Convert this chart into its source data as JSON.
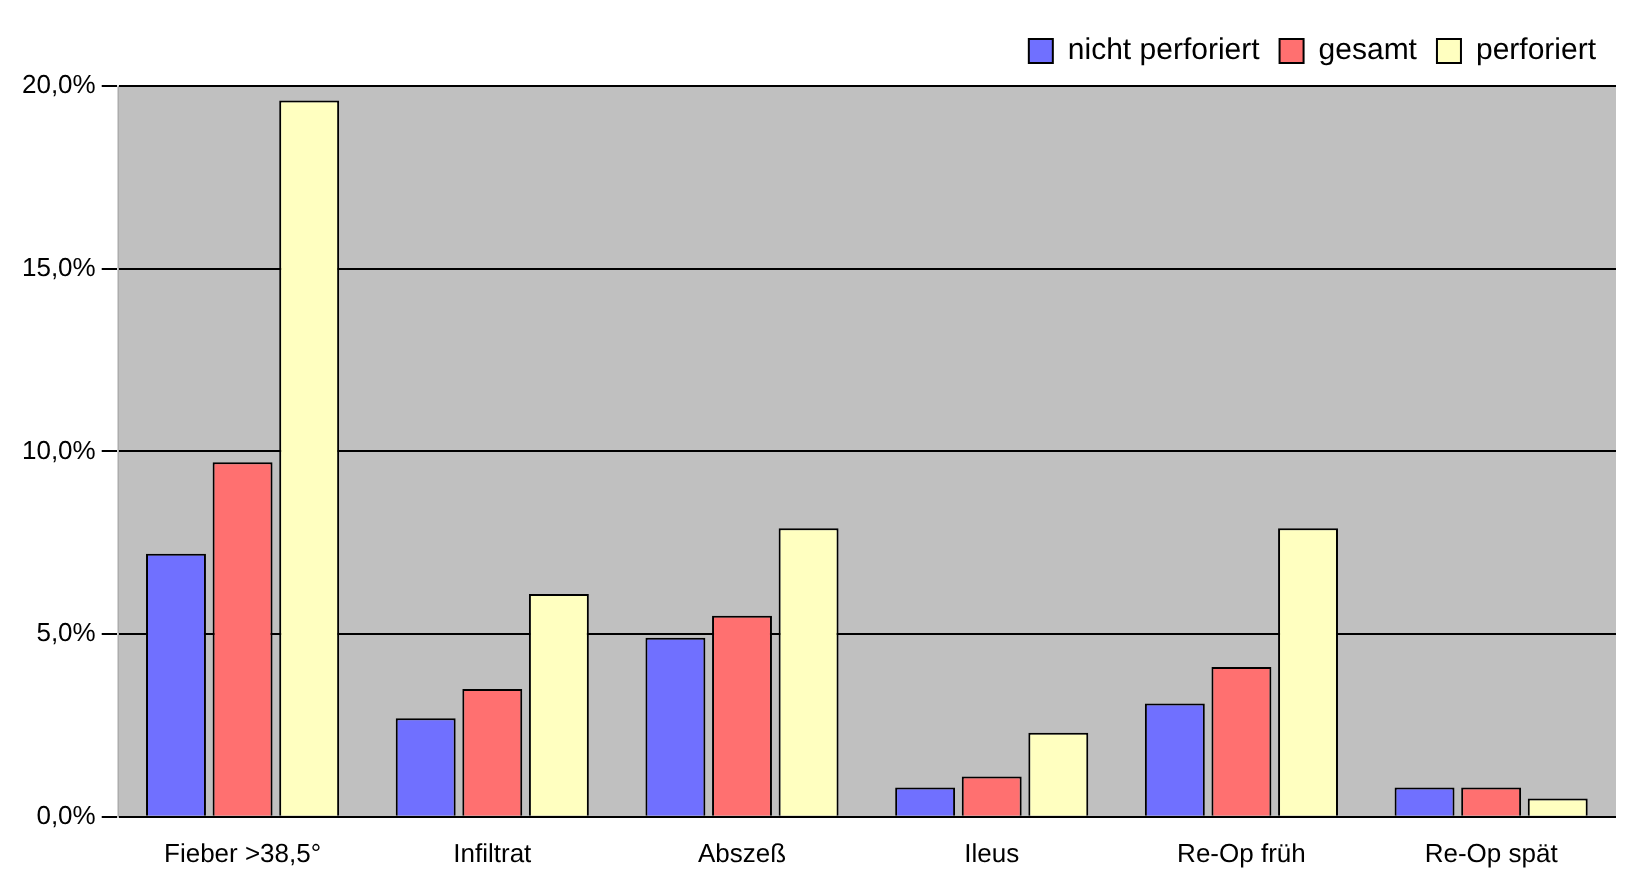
{
  "chart_data": {
    "type": "bar",
    "categories": [
      "Fieber >38,5°",
      "Infiltrat",
      "Abszeß",
      "Ileus",
      "Re-Op früh",
      "Re-Op spät"
    ],
    "series": [
      {
        "name": "nicht perforiert",
        "color": "#7070ff",
        "values": [
          7.2,
          2.7,
          4.9,
          0.8,
          3.1,
          0.8
        ]
      },
      {
        "name": "gesamt",
        "color": "#ff7070",
        "values": [
          9.7,
          3.5,
          5.5,
          1.1,
          4.1,
          0.8
        ]
      },
      {
        "name": "perforiert",
        "color": "#ffffc0",
        "values": [
          19.6,
          6.1,
          7.9,
          2.3,
          7.9,
          0.5
        ]
      }
    ],
    "ylim": [
      0,
      20
    ],
    "yticks": [
      {
        "value": 0,
        "label": "0,0%"
      },
      {
        "value": 5,
        "label": "5,0%"
      },
      {
        "value": 10,
        "label": "10,0%"
      },
      {
        "value": 15,
        "label": "15,0%"
      },
      {
        "value": 20,
        "label": "20,0%"
      }
    ],
    "grid": "y",
    "legend": "top right"
  }
}
